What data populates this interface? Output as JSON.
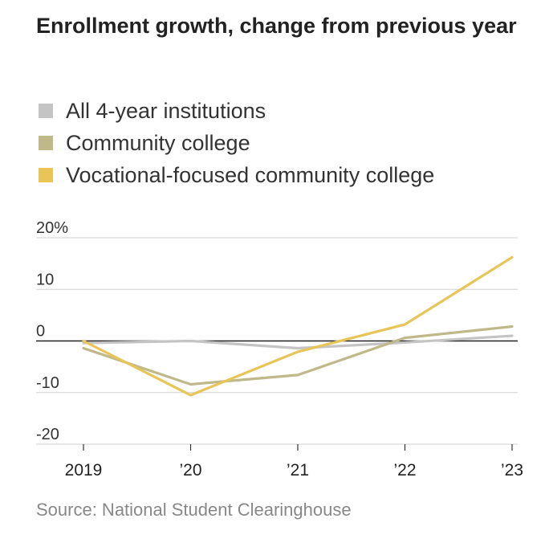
{
  "chart_data": {
    "type": "line",
    "title": "Enrollment growth, change from previous year",
    "categories": [
      "2019",
      "’20",
      "’21",
      "’22",
      "’23"
    ],
    "series": [
      {
        "name": "All 4-year institutions",
        "color": "#c4c4c4",
        "values": [
          -0.4,
          0.0,
          -1.4,
          -0.3,
          1.0
        ]
      },
      {
        "name": "Community college",
        "color": "#bfb98a",
        "values": [
          -1.4,
          -8.4,
          -6.6,
          0.6,
          2.8
        ]
      },
      {
        "name": "Vocational-focused community college",
        "color": "#e9c456",
        "values": [
          0.0,
          -10.5,
          -2.1,
          3.2,
          16.2
        ]
      }
    ],
    "yticks": [
      20,
      10,
      0,
      -10,
      -20
    ],
    "ytick_labels": [
      "20%",
      "10",
      "0",
      "-10",
      "-20"
    ],
    "ylim": [
      -20,
      20
    ],
    "grid": true,
    "legend": "top-left",
    "source": "Source: National Student Clearinghouse"
  }
}
